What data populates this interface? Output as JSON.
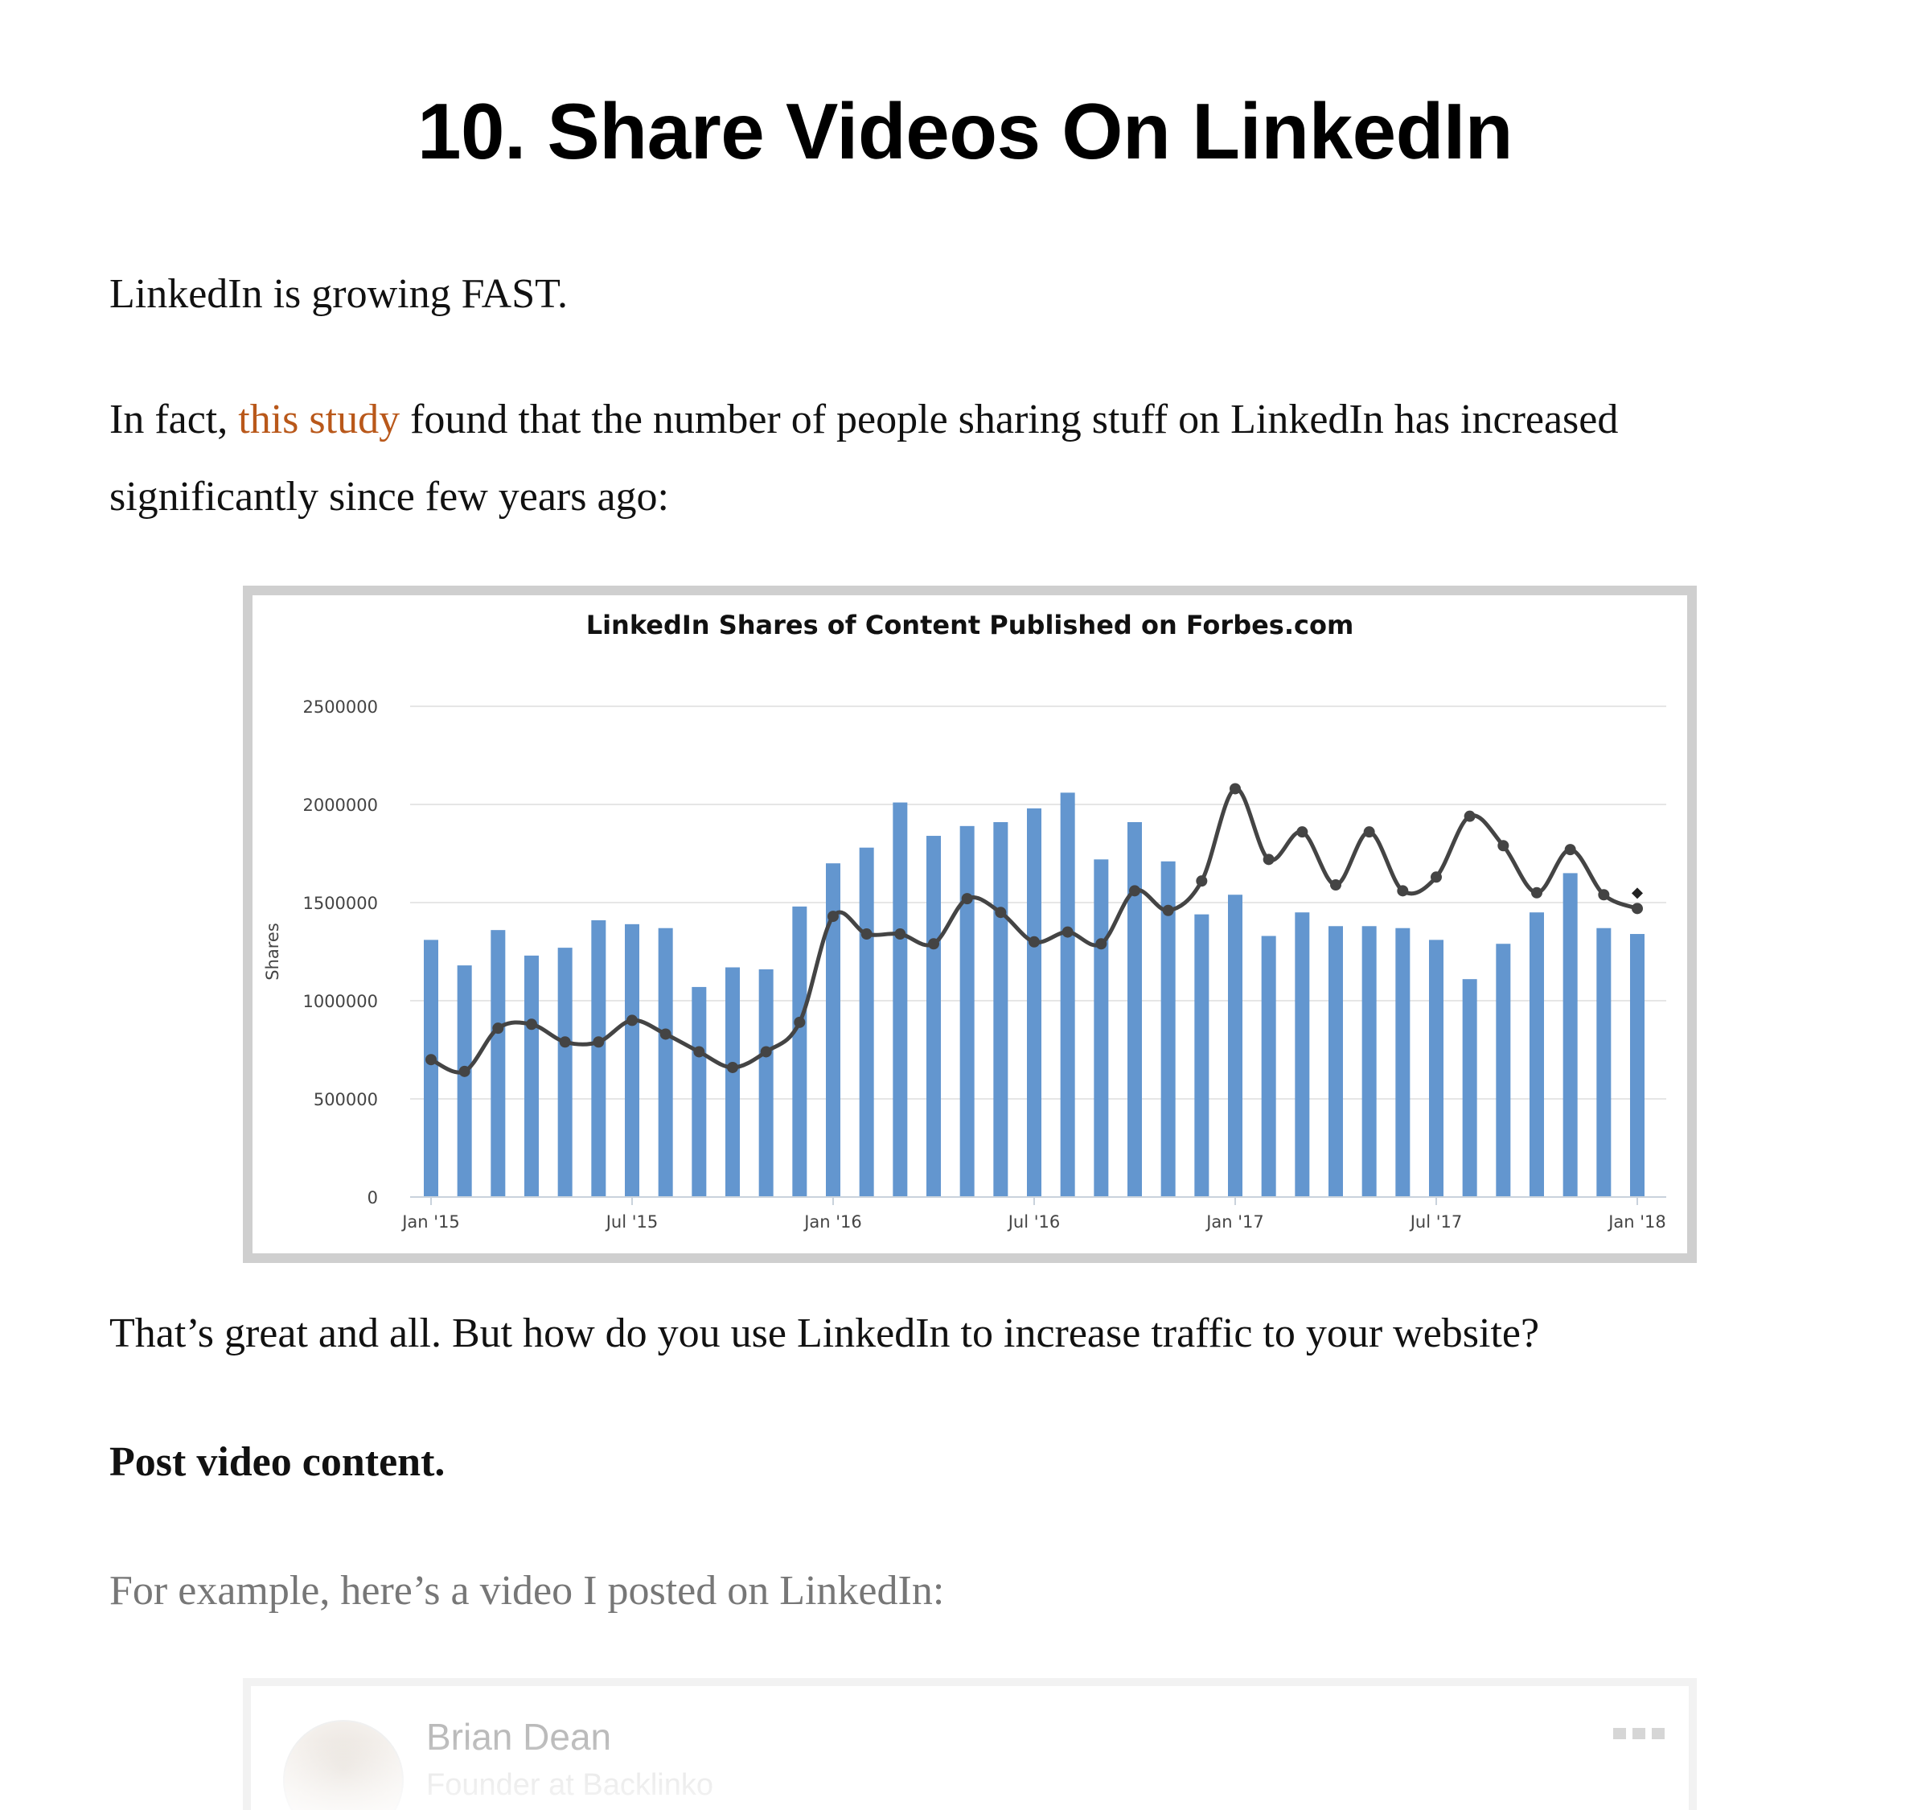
{
  "article": {
    "heading": "10. Share Videos On LinkedIn",
    "p1": "LinkedIn is growing FAST.",
    "p2_before": "In fact, ",
    "p2_link": "this study",
    "p2_after": " found that the number of people sharing stuff on LinkedIn has increased significantly since few years ago:",
    "p3": "That’s great and all. But how do you use LinkedIn to increase traffic to your website?",
    "p4": "Post video content.",
    "p5": "For example, here’s a video I posted on LinkedIn:"
  },
  "post_card": {
    "author_name": "Brian Dean",
    "author_subtitle": "Founder at Backlinko",
    "menu_icon": "more-dots-icon",
    "avatar_icon": "avatar-photo"
  },
  "colors": {
    "link": "#b9581a",
    "bar": "#6396cf",
    "line": "#444444"
  },
  "chart_data": {
    "type": "bar",
    "title": "LinkedIn Shares of Content Published on Forbes.com",
    "xlabel": "",
    "ylabel": "Shares",
    "ylim": [
      0,
      2500000
    ],
    "yticks": [
      0,
      500000,
      1000000,
      1500000,
      2000000,
      2500000
    ],
    "xtick_labels": [
      "Jan '15",
      "Jul '15",
      "Jan '16",
      "Jul '16",
      "Jan '17",
      "Jul '17",
      "Jan '18"
    ],
    "xtick_positions": [
      0,
      6,
      12,
      18,
      24,
      30,
      36
    ],
    "grid": true,
    "legend": "none",
    "categories": [
      "Jan 2015",
      "Feb 2015",
      "Mar 2015",
      "Apr 2015",
      "May 2015",
      "Jun 2015",
      "Jul 2015",
      "Aug 2015",
      "Sep 2015",
      "Oct 2015",
      "Nov 2015",
      "Dec 2015",
      "Jan 2016",
      "Feb 2016",
      "Mar 2016",
      "Apr 2016",
      "May 2016",
      "Jun 2016",
      "Jul 2016",
      "Aug 2016",
      "Sep 2016",
      "Oct 2016",
      "Nov 2016",
      "Dec 2016",
      "Jan 2017",
      "Feb 2017",
      "Mar 2017",
      "Apr 2017",
      "May 2017",
      "Jun 2017",
      "Jul 2017",
      "Aug 2017",
      "Sep 2017",
      "Oct 2017",
      "Nov 2017",
      "Dec 2017",
      "Jan 2018"
    ],
    "series": [
      {
        "type": "bar",
        "values": [
          1310000,
          1180000,
          1360000,
          1230000,
          1270000,
          1410000,
          1390000,
          1370000,
          1070000,
          1170000,
          1160000,
          1480000,
          1700000,
          1780000,
          2010000,
          1840000,
          1890000,
          1910000,
          1980000,
          2060000,
          1720000,
          1910000,
          1710000,
          1440000,
          1540000,
          1330000,
          1450000,
          1380000,
          1380000,
          1370000,
          1310000,
          1110000,
          1290000,
          1450000,
          1650000,
          1370000,
          1340000
        ]
      },
      {
        "type": "line",
        "values": [
          700000,
          640000,
          860000,
          880000,
          790000,
          790000,
          900000,
          830000,
          740000,
          660000,
          740000,
          890000,
          1430000,
          1340000,
          1340000,
          1290000,
          1520000,
          1450000,
          1300000,
          1350000,
          1290000,
          1560000,
          1460000,
          1610000,
          2080000,
          1720000,
          1860000,
          1590000,
          1860000,
          1560000,
          1630000,
          1940000,
          1790000,
          1550000,
          1770000,
          1540000,
          1470000
        ]
      }
    ]
  }
}
